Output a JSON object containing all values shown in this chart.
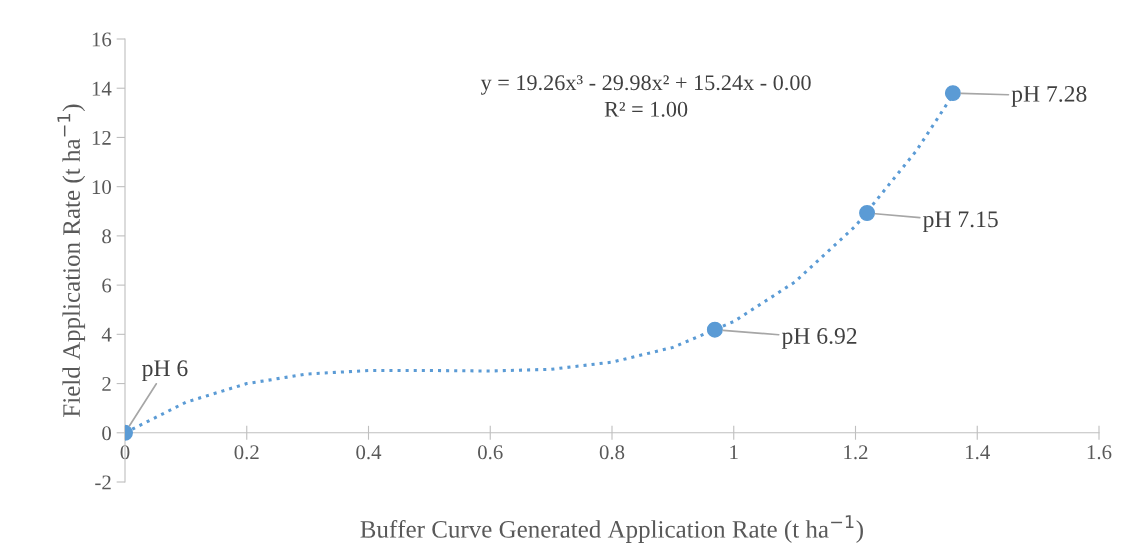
{
  "chart_data": {
    "type": "scatter",
    "xlabel": "Buffer Curve Generated Application Rate (t ha$^{−1}$)",
    "ylabel": "Field Application Rate (t ha$^{−1}$)",
    "x": [
      0,
      0.969,
      1.219,
      1.36
    ],
    "series": [
      {
        "color": "#5b9bd5",
        "values": [
          0,
          4.19,
          8.93,
          13.8
        ],
        "marker": "circle"
      },
      {
        "type": "line",
        "color": "#5b9bd5",
        "line_style": "dotted",
        "marker": "none",
        "x": [
          0,
          0.1,
          0.2,
          0.3,
          0.4,
          0.5,
          0.6,
          0.7,
          0.8,
          0.9,
          1.0,
          1.1,
          1.2,
          1.3,
          1.36
        ],
        "values": [
          0,
          1.24,
          2.0,
          2.39,
          2.53,
          2.53,
          2.51,
          2.58,
          2.87,
          3.47,
          4.52,
          6.12,
          8.4,
          11.46,
          13.73
        ]
      }
    ],
    "xlim": [
      0,
      1.6
    ],
    "xticks": [
      0,
      0.2,
      0.4,
      0.6,
      0.8,
      1,
      1.2,
      1.4,
      1.6
    ],
    "ylim": [
      -2,
      16
    ],
    "yticks": [
      -2,
      0,
      2,
      4,
      6,
      8,
      10,
      12,
      14,
      16
    ],
    "grid": false,
    "legend": false,
    "annotations": [
      "y = 19.26x³ - 29.98x² + 15.24x - 0.00",
      "R² = 1.00",
      {
        "text": "pH 6",
        "x": 0,
        "y": 0
      },
      {
        "text": "pH 6.92",
        "x": 0.969,
        "y": 4.19
      },
      {
        "text": "pH 7.15",
        "x": 1.219,
        "y": 8.93
      },
      {
        "text": "pH 7.28",
        "x": 1.36,
        "y": 13.8
      }
    ]
  }
}
